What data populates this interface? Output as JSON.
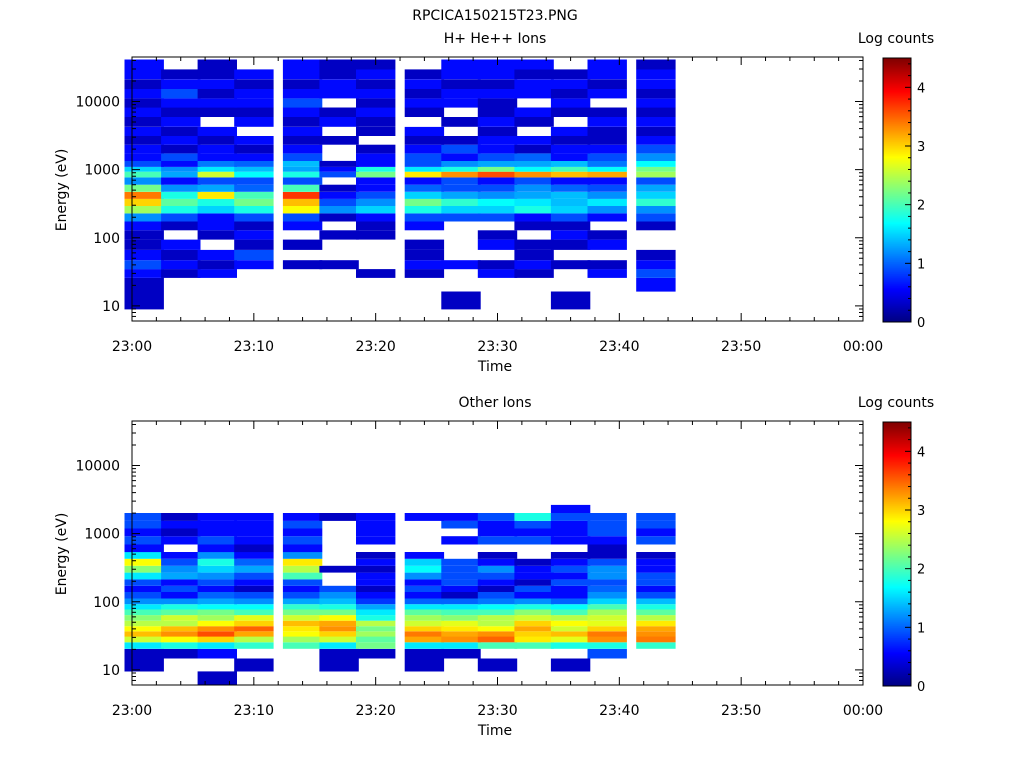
{
  "figure_title": "RPCICA150215T23.PNG",
  "colormap": [
    "#00007f",
    "#0000ff",
    "#007fff",
    "#00ffff",
    "#7fff7f",
    "#ffff00",
    "#ff7f00",
    "#ff0000",
    "#7f0000"
  ],
  "chart_data": [
    {
      "type": "heatmap",
      "title": "H+ He++ Ions",
      "xlabel": "Time",
      "ylabel": "Energy (eV)",
      "yscale": "log",
      "ylim": [
        6,
        45000
      ],
      "xlim": [
        "23:00",
        "00:00"
      ],
      "x_ticks": [
        "23:00",
        "23:10",
        "23:20",
        "23:30",
        "23:40",
        "23:50",
        "00:00"
      ],
      "y_ticks": [
        "10",
        "100",
        "1000",
        "10000"
      ],
      "colorbar": {
        "label": "Log counts",
        "min": 0,
        "max": 4.5,
        "ticks": [
          "0",
          "1",
          "2",
          "3",
          "4"
        ]
      },
      "time_bins": [
        "23:01",
        "23:04",
        "23:07",
        "23:10",
        "23:14",
        "23:17",
        "23:20",
        "23:24",
        "23:27",
        "23:30",
        "23:33",
        "23:36",
        "23:39",
        "23:43"
      ],
      "energy_bins": [
        12,
        22,
        30,
        40,
        55,
        80,
        110,
        150,
        200,
        260,
        330,
        420,
        530,
        680,
        870,
        1000,
        1200,
        1500,
        2000,
        2700,
        3600,
        5000,
        7000,
        9500,
        13000,
        18000,
        25000,
        35000
      ],
      "z": [
        [
          0.3,
          0,
          0,
          0,
          0,
          0,
          0,
          0,
          0.3,
          0,
          0,
          0.3,
          0,
          0
        ],
        [
          0.3,
          0,
          0,
          0,
          0,
          0,
          0,
          0,
          0,
          0,
          0,
          0,
          0,
          0.6
        ],
        [
          0.6,
          0.3,
          0.6,
          0,
          0,
          0,
          0.3,
          0.3,
          0,
          0.6,
          0.3,
          0,
          0.6,
          0.9
        ],
        [
          0.9,
          0.6,
          0.3,
          0.6,
          0.3,
          0.3,
          0,
          0.6,
          0.6,
          0.3,
          0.6,
          0.3,
          0.3,
          0.6
        ],
        [
          0.6,
          0.3,
          0.6,
          0.9,
          0,
          0,
          0,
          0.3,
          0,
          0,
          0.3,
          0,
          0,
          0.3
        ],
        [
          0.3,
          0.6,
          0,
          0.3,
          0.3,
          0,
          0,
          0.3,
          0,
          0.6,
          0.3,
          0.3,
          0.6,
          0
        ],
        [
          0.3,
          0,
          0.3,
          0.6,
          0,
          0.3,
          0.3,
          0,
          0,
          0.3,
          0,
          0.6,
          0.3,
          0
        ],
        [
          0.6,
          0.3,
          0.6,
          0.3,
          0.6,
          0,
          0.3,
          0.6,
          0,
          0,
          0.3,
          0.3,
          0,
          0.3
        ],
        [
          1.2,
          0.9,
          0.6,
          0.9,
          0.9,
          0.3,
          0.6,
          0.9,
          0.9,
          0.9,
          0.6,
          0.9,
          0.6,
          0.9
        ],
        [
          2.4,
          1.8,
          1.5,
          1.8,
          2.8,
          1.2,
          1.5,
          1.8,
          1.5,
          1.5,
          1.8,
          1.5,
          1.2,
          1.2
        ],
        [
          3.0,
          2.1,
          1.8,
          2.2,
          3.1,
          0.9,
          1.2,
          2.2,
          1.9,
          1.7,
          1.6,
          1.4,
          1.6,
          1.9
        ],
        [
          3.4,
          1.8,
          2.9,
          2.0,
          3.7,
          0.6,
          0.9,
          1.5,
          1.3,
          1.2,
          1.3,
          1.4,
          1.2,
          1.5
        ],
        [
          2.2,
          1.2,
          1.3,
          1.0,
          2.0,
          0.3,
          0.6,
          1.0,
          0.9,
          0.9,
          1.2,
          1.0,
          0.9,
          1.3
        ],
        [
          1.2,
          0.6,
          0.9,
          0.9,
          0.9,
          0,
          0.6,
          0.6,
          0.9,
          0.6,
          0.9,
          0.6,
          0.6,
          0.9
        ],
        [
          2.0,
          1.3,
          2.6,
          1.7,
          1.8,
          0.9,
          2.2,
          2.9,
          3.3,
          3.6,
          3.3,
          3.1,
          3.2,
          2.4
        ],
        [
          1.5,
          1.2,
          1.6,
          1.4,
          1.3,
          0.6,
          1.8,
          1.6,
          1.8,
          2.2,
          1.7,
          2.0,
          1.7,
          2.2
        ],
        [
          0.9,
          0.6,
          1.1,
          1.0,
          1.4,
          0.3,
          0.6,
          0.9,
          1.2,
          1.3,
          1.3,
          1.4,
          1.1,
          1.7
        ],
        [
          0.6,
          0.9,
          0.6,
          0.6,
          0.9,
          0,
          0.6,
          0.9,
          0.6,
          0.9,
          1.0,
          0.6,
          0.9,
          1.2
        ],
        [
          0.6,
          0.3,
          0.6,
          0.3,
          0.6,
          0,
          0.3,
          0.6,
          0.9,
          0.6,
          0.3,
          0.6,
          0.6,
          0.9
        ],
        [
          0.3,
          0.6,
          0.3,
          0.6,
          0.3,
          0.3,
          0,
          0.3,
          0.3,
          0.6,
          0.6,
          0.3,
          0.3,
          0.6
        ],
        [
          0.6,
          0.3,
          0.6,
          0,
          0.6,
          0,
          0.3,
          0.6,
          0,
          0.3,
          0,
          0.6,
          0.3,
          0.3
        ],
        [
          0.3,
          0.6,
          0,
          0.6,
          0.3,
          0.6,
          0.3,
          0,
          0.3,
          0.6,
          0.3,
          0,
          0.6,
          0.6
        ],
        [
          0.6,
          0.3,
          0.3,
          0.3,
          0.6,
          0.3,
          0.6,
          0.3,
          0,
          0.3,
          0.6,
          0.3,
          0.3,
          0.3
        ],
        [
          0.3,
          0.6,
          0.6,
          0.6,
          0.9,
          0,
          0.3,
          0.6,
          0.6,
          0.3,
          0,
          0.6,
          0,
          0.6
        ],
        [
          0.6,
          0.9,
          0.3,
          0.6,
          0.6,
          0.6,
          0.6,
          0.3,
          0.6,
          0.6,
          0.6,
          0.3,
          0.6,
          0.3
        ],
        [
          0.3,
          0.6,
          0.6,
          0.3,
          0.3,
          0.6,
          0.3,
          0.6,
          0.3,
          0.3,
          0.6,
          0.6,
          0.3,
          0.6
        ],
        [
          0.6,
          0.3,
          0.3,
          0.6,
          0.6,
          0.3,
          0.6,
          0.3,
          0.6,
          0.6,
          0.3,
          0.3,
          0.6,
          0.6
        ],
        [
          0.6,
          0,
          0.3,
          0,
          0.6,
          0.3,
          0.3,
          0,
          0.6,
          0.6,
          0.6,
          0,
          0.6,
          0.3
        ]
      ]
    },
    {
      "type": "heatmap",
      "title": "Other Ions",
      "xlabel": "Time",
      "ylabel": "Energy (eV)",
      "yscale": "log",
      "ylim": [
        6,
        45000
      ],
      "xlim": [
        "23:00",
        "00:00"
      ],
      "x_ticks": [
        "23:00",
        "23:10",
        "23:20",
        "23:30",
        "23:40",
        "23:50",
        "00:00"
      ],
      "y_ticks": [
        "10",
        "100",
        "1000",
        "10000"
      ],
      "colorbar": {
        "label": "Log counts",
        "min": 0,
        "max": 4.5,
        "ticks": [
          "0",
          "1",
          "2",
          "3",
          "4"
        ]
      },
      "time_bins": [
        "23:01",
        "23:04",
        "23:07",
        "23:10",
        "23:14",
        "23:17",
        "23:20",
        "23:24",
        "23:27",
        "23:30",
        "23:33",
        "23:36",
        "23:39",
        "23:43"
      ],
      "energy_bins": [
        7.5,
        12,
        18,
        23,
        28,
        34,
        40,
        48,
        58,
        70,
        85,
        100,
        125,
        155,
        190,
        240,
        300,
        380,
        480,
        600,
        800,
        1050,
        1350,
        1750,
        2300
      ],
      "z": [
        [
          0,
          0,
          0.3,
          0,
          0,
          0,
          0,
          0,
          0,
          0,
          0,
          0,
          0,
          0
        ],
        [
          0.3,
          0,
          0,
          0.3,
          0,
          0.3,
          0,
          0.3,
          0,
          0.3,
          0,
          0.3,
          0,
          0
        ],
        [
          0.3,
          0.3,
          0.6,
          0,
          0,
          0.3,
          0.3,
          0.3,
          0.3,
          0,
          0,
          0,
          0.9,
          0
        ],
        [
          1.6,
          1.8,
          1.6,
          1.9,
          2.0,
          1.6,
          2.2,
          1.6,
          1.6,
          2.0,
          2.0,
          1.8,
          1.8,
          1.9
        ],
        [
          2.6,
          2.8,
          3.0,
          2.5,
          2.4,
          2.6,
          2.1,
          3.2,
          3.3,
          3.5,
          2.9,
          2.7,
          3.3,
          3.4
        ],
        [
          3.1,
          3.3,
          3.6,
          3.2,
          2.8,
          3.0,
          2.4,
          3.4,
          3.2,
          3.3,
          3.0,
          3.1,
          3.4,
          3.3
        ],
        [
          2.8,
          3.1,
          3.3,
          3.5,
          2.9,
          3.3,
          2.2,
          3.0,
          2.9,
          2.8,
          3.2,
          2.6,
          3.0,
          3.2
        ],
        [
          2.5,
          2.5,
          2.8,
          3.0,
          3.1,
          3.2,
          2.5,
          2.6,
          2.7,
          2.5,
          3.0,
          2.8,
          2.7,
          2.9
        ],
        [
          2.3,
          2.6,
          2.4,
          2.7,
          2.6,
          2.8,
          1.8,
          2.4,
          2.3,
          2.5,
          2.6,
          2.5,
          2.6,
          2.5
        ],
        [
          2.0,
          2.1,
          2.2,
          2.0,
          2.2,
          2.2,
          1.6,
          2.1,
          2.0,
          2.0,
          2.3,
          2.0,
          2.4,
          2.1
        ],
        [
          1.6,
          1.8,
          1.7,
          1.7,
          1.9,
          1.8,
          1.3,
          1.6,
          1.6,
          1.7,
          1.8,
          1.7,
          2.0,
          1.8
        ],
        [
          1.2,
          1.2,
          1.3,
          1.2,
          1.3,
          1.4,
          0.8,
          1.0,
          1.0,
          1.1,
          1.2,
          1.0,
          1.5,
          1.4
        ],
        [
          0.9,
          0.6,
          1.0,
          0.9,
          0.9,
          1.2,
          0.6,
          0.6,
          0.3,
          0.9,
          0.6,
          0.6,
          1.2,
          0.9
        ],
        [
          0.6,
          0.9,
          0.6,
          0.3,
          0.6,
          0.9,
          0.3,
          0.9,
          0.6,
          0.3,
          0.9,
          0.6,
          1.0,
          0.6
        ],
        [
          0.9,
          0.6,
          0.9,
          0.6,
          0.9,
          0,
          0.6,
          0.6,
          0.9,
          0.6,
          0.3,
          0.9,
          0.9,
          0.9
        ],
        [
          1.6,
          1.3,
          1.2,
          0.9,
          2.0,
          0,
          0.6,
          1.2,
          0.9,
          0.9,
          0.6,
          0.6,
          1.2,
          0.9
        ],
        [
          2.3,
          1.2,
          1.5,
          1.3,
          2.5,
          0.3,
          0.3,
          1.7,
          0.9,
          1.2,
          0.6,
          0.9,
          1.2,
          0.6
        ],
        [
          2.8,
          0.9,
          1.8,
          1.0,
          2.9,
          0,
          0.6,
          1.5,
          0.9,
          0.6,
          0.3,
          0.6,
          0.9,
          0.6
        ],
        [
          1.6,
          0.6,
          1.2,
          0.6,
          1.2,
          0,
          0.3,
          0.6,
          0,
          0.3,
          0,
          0.3,
          0.3,
          0.3
        ],
        [
          0.6,
          0,
          0.6,
          0.3,
          0.6,
          0,
          0,
          0,
          0,
          0,
          0,
          0,
          0.3,
          0
        ],
        [
          0.9,
          0.6,
          0.9,
          0.6,
          0.9,
          0,
          0.6,
          0,
          0.6,
          0.9,
          0.9,
          0.6,
          0.6,
          0.9
        ],
        [
          0.6,
          0.3,
          0.6,
          0.6,
          0.6,
          0,
          0.6,
          0,
          0,
          0.6,
          0.6,
          0.6,
          0.9,
          0.6
        ],
        [
          0.9,
          0.6,
          0.6,
          0.6,
          0.9,
          0,
          0.6,
          0,
          0.9,
          0.6,
          0.9,
          0.6,
          0.9,
          0.9
        ],
        [
          0.9,
          0.3,
          0.6,
          0.6,
          0.6,
          0.3,
          0.6,
          0.6,
          0.6,
          0.9,
          1.8,
          0.9,
          0.9,
          0.9
        ],
        [
          0,
          0,
          0,
          0,
          0,
          0,
          0,
          0,
          0,
          0,
          0,
          0.6,
          0,
          0
        ]
      ]
    }
  ]
}
